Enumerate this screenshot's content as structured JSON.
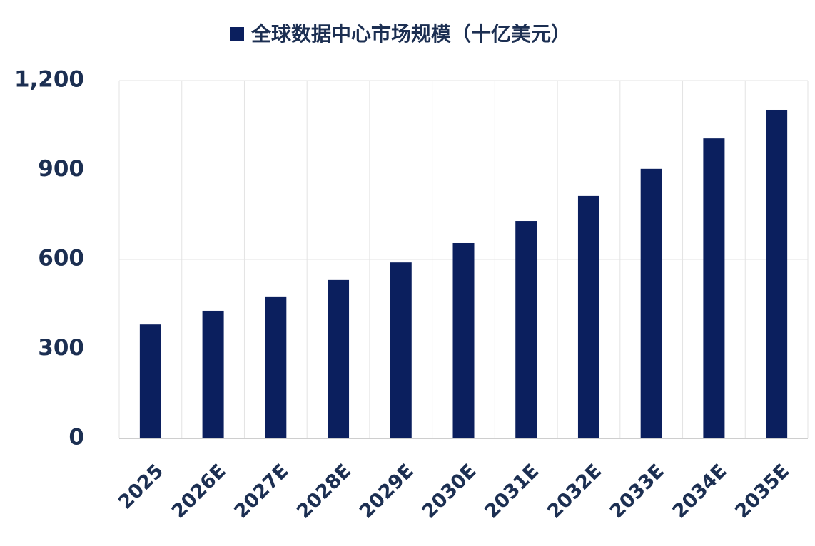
{
  "chart_data": {
    "type": "bar",
    "categories": [
      "2025",
      "2026E",
      "2027E",
      "2028E",
      "2029E",
      "2030E",
      "2031E",
      "2032E",
      "2033E",
      "2034E",
      "2035E"
    ],
    "series": [
      {
        "name": "全球数据中心市场规模（十亿美元）",
        "color": "#0b1f5e",
        "values": [
          382,
          428,
          476,
          531,
          590,
          655,
          729,
          813,
          904,
          1006,
          1102
        ]
      }
    ],
    "ylim": [
      0,
      1200
    ],
    "yticks": [
      0,
      300,
      600,
      900,
      {
        "value": 1200,
        "label": "1,200"
      }
    ],
    "grid": true,
    "legend": "top"
  }
}
